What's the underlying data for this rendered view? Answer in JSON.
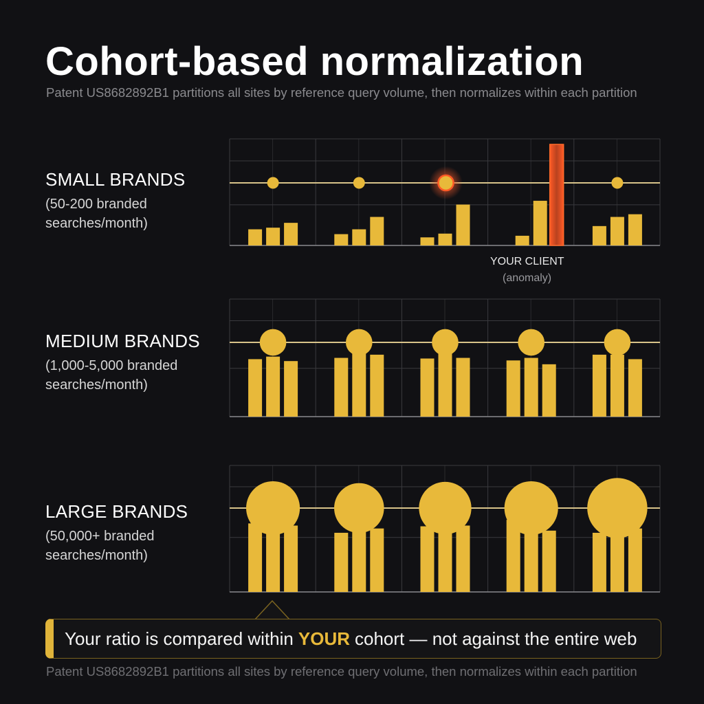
{
  "header": {
    "title": "Cohort-based normalization",
    "subtitle": "Patent US8682892B1 partitions all sites by reference query volume, then normalizes within each partition"
  },
  "colors": {
    "background": "#111114",
    "accent": "#e8b93a",
    "anomaly": "#e0542a",
    "grid": "#3a3a3e"
  },
  "cohorts": [
    {
      "name": "SMALL BRANDS",
      "description": "(50-200 branded searches/month)",
      "sites": [
        {
          "ratio": 1,
          "bars": [
            0.3,
            0.33,
            0.42
          ],
          "anomaly": false
        },
        {
          "ratio": 1,
          "bars": [
            0.21,
            0.3,
            0.53
          ],
          "anomaly": false
        },
        {
          "ratio": 1.3,
          "bars": [
            0.15,
            0.22,
            0.76
          ],
          "anomaly": true
        },
        {
          "ratio": 0,
          "bars": [
            0.18,
            0.83
          ],
          "anomaly": true,
          "spike": 3.2
        },
        {
          "ratio": 1,
          "bars": [
            0.36,
            0.53,
            0.58
          ],
          "anomaly": false
        }
      ]
    },
    {
      "name": "MEDIUM BRANDS",
      "description": "(1,000-5,000 branded searches/month)",
      "sites": [
        {
          "ratio": 2.1,
          "bars": [
            0.9,
            0.94,
            0.87
          ]
        },
        {
          "ratio": 2.1,
          "bars": [
            0.92,
            1.0,
            0.97
          ]
        },
        {
          "ratio": 2.1,
          "bars": [
            0.91,
            1.0,
            0.92
          ]
        },
        {
          "ratio": 2.1,
          "bars": [
            0.88,
            0.92,
            0.82
          ]
        },
        {
          "ratio": 2.1,
          "bars": [
            0.97,
            0.97,
            0.9
          ]
        }
      ]
    },
    {
      "name": "LARGE BRANDS",
      "description": "(50,000+ branded searches/month)",
      "sites": [
        {
          "ratio": 4.2,
          "bars": [
            0.95,
            0.85,
            0.92
          ]
        },
        {
          "ratio": 3.9,
          "bars": [
            0.82,
            0.92,
            0.88
          ]
        },
        {
          "ratio": 4.1,
          "bars": [
            0.91,
            0.95,
            0.92
          ]
        },
        {
          "ratio": 4.2,
          "bars": [
            1.0,
            0.95,
            0.85
          ]
        },
        {
          "ratio": 4.7,
          "bars": [
            0.82,
            1.0,
            0.88
          ]
        }
      ]
    }
  ],
  "client": {
    "label": "YOUR CLIENT",
    "note": "(anomaly)"
  },
  "callout": {
    "before": "Your ratio is compared within",
    "highlight": "YOUR",
    "after": "cohort — not against the entire web"
  },
  "footer": "Patent US8682892B1 partitions all sites by reference query volume, then normalizes within each partition"
}
